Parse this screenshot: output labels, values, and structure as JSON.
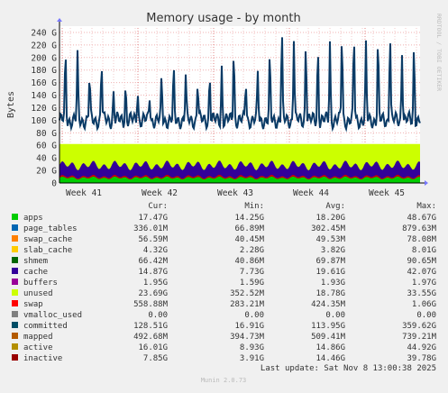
{
  "chart_data": {
    "type": "area",
    "title": "Memory usage - by month",
    "ylabel": "Bytes",
    "side_label": "RRDTOOL / TOBI OETIKER",
    "ylim": [
      0,
      250
    ],
    "yticks": [
      "0",
      "20 G",
      "40 G",
      "60 G",
      "80 G",
      "100 G",
      "120 G",
      "140 G",
      "160 G",
      "180 G",
      "200 G",
      "220 G",
      "240 G"
    ],
    "xticks": [
      "Week 41",
      "Week 42",
      "Week 43",
      "Week 44",
      "Week 45"
    ],
    "stacked_layers_approx_G": [
      {
        "name": "apps",
        "color": "#00cc00",
        "level": 8
      },
      {
        "name": "buffers",
        "color": "#cc0000",
        "level": 10
      },
      {
        "name": "cache",
        "color": "#330099",
        "level": 28
      },
      {
        "name": "unused",
        "color": "#ccff00",
        "level": 62
      }
    ],
    "committed": {
      "name": "committed",
      "color": "#0b3b66",
      "base_G": 100,
      "peaks_G": [
        205,
        200,
        170,
        195,
        145,
        155,
        150,
        140,
        165,
        175,
        170,
        165,
        175,
        185,
        215,
        165,
        175,
        195,
        240,
        235,
        230,
        215,
        225,
        240,
        235,
        215,
        225,
        245,
        215,
        220
      ]
    },
    "legend_header": [
      "Cur:",
      "Min:",
      "Avg:",
      "Max:"
    ],
    "legend": [
      {
        "name": "apps",
        "color": "#00cc00",
        "cur": "17.47G",
        "min": "14.25G",
        "avg": "18.20G",
        "max": "48.67G"
      },
      {
        "name": "page_tables",
        "color": "#0066b3",
        "cur": "336.01M",
        "min": "66.89M",
        "avg": "302.45M",
        "max": "879.63M"
      },
      {
        "name": "swap_cache",
        "color": "#ff8000",
        "cur": "56.59M",
        "min": "40.45M",
        "avg": "49.53M",
        "max": "78.08M"
      },
      {
        "name": "slab_cache",
        "color": "#ffcc00",
        "cur": "4.32G",
        "min": "2.28G",
        "avg": "3.82G",
        "max": "8.01G"
      },
      {
        "name": "shmem",
        "color": "#006600",
        "cur": "66.42M",
        "min": "40.86M",
        "avg": "69.87M",
        "max": "90.65M"
      },
      {
        "name": "cache",
        "color": "#330099",
        "cur": "14.87G",
        "min": "7.73G",
        "avg": "19.61G",
        "max": "42.07G"
      },
      {
        "name": "buffers",
        "color": "#990099",
        "cur": "1.95G",
        "min": "1.59G",
        "avg": "1.93G",
        "max": "1.97G"
      },
      {
        "name": "unused",
        "color": "#ccff00",
        "cur": "23.69G",
        "min": "352.52M",
        "avg": "18.78G",
        "max": "33.55G"
      },
      {
        "name": "swap",
        "color": "#ff0000",
        "cur": "558.88M",
        "min": "283.21M",
        "avg": "424.35M",
        "max": "1.06G"
      },
      {
        "name": "vmalloc_used",
        "color": "#808080",
        "cur": "0.00",
        "min": "0.00",
        "avg": "0.00",
        "max": "0.00"
      },
      {
        "name": "committed",
        "color": "#004d66",
        "cur": "128.51G",
        "min": "16.91G",
        "avg": "113.95G",
        "max": "359.62G"
      },
      {
        "name": "mapped",
        "color": "#b35a00",
        "cur": "492.68M",
        "min": "394.73M",
        "avg": "509.41M",
        "max": "739.21M"
      },
      {
        "name": "active",
        "color": "#b38f00",
        "cur": "16.01G",
        "min": "8.93G",
        "avg": "14.86G",
        "max": "44.92G"
      },
      {
        "name": "inactive",
        "color": "#990000",
        "cur": "7.85G",
        "min": "3.91G",
        "avg": "14.46G",
        "max": "39.78G"
      }
    ],
    "last_update": "Last update: Sat Nov  8 13:00:38 2025",
    "footer": "Munin 2.0.73"
  }
}
